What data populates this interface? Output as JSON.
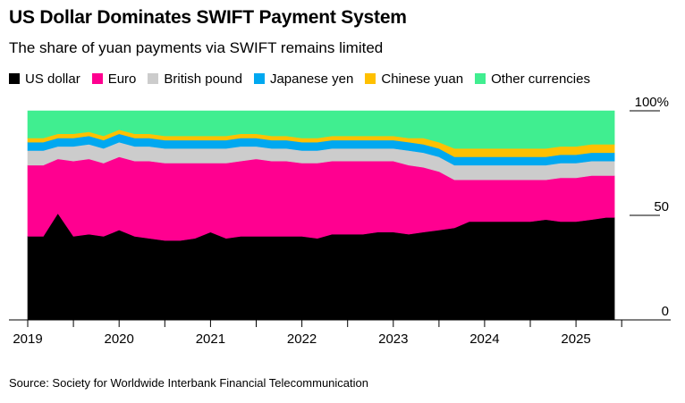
{
  "chart_data": {
    "type": "area",
    "stacked": true,
    "title": "US Dollar Dominates SWIFT Payment System",
    "subtitle": "The share of yuan payments via SWIFT remains limited",
    "source": "Source: Society for Worldwide Interbank Financial Telecommunication",
    "ylim": [
      0,
      100
    ],
    "y_ticks": [
      {
        "value": 100,
        "label": "100%"
      },
      {
        "value": 50,
        "label": "50"
      },
      {
        "value": 0,
        "label": "0"
      }
    ],
    "x_ticks": [
      {
        "value": 2019.0,
        "label": "2019"
      },
      {
        "value": 2019.5,
        "label": ""
      },
      {
        "value": 2020.0,
        "label": "2020"
      },
      {
        "value": 2020.5,
        "label": ""
      },
      {
        "value": 2021.0,
        "label": "2021"
      },
      {
        "value": 2021.5,
        "label": ""
      },
      {
        "value": 2022.0,
        "label": "2022"
      },
      {
        "value": 2022.5,
        "label": ""
      },
      {
        "value": 2023.0,
        "label": "2023"
      },
      {
        "value": 2023.5,
        "label": ""
      },
      {
        "value": 2024.0,
        "label": "2024"
      },
      {
        "value": 2024.5,
        "label": ""
      },
      {
        "value": 2025.0,
        "label": "2025"
      },
      {
        "value": 2025.5,
        "label": ""
      }
    ],
    "xlim": [
      2019.0,
      2025.85
    ],
    "x": [
      2019.0,
      2019.17,
      2019.33,
      2019.5,
      2019.67,
      2019.83,
      2020.0,
      2020.17,
      2020.33,
      2020.5,
      2020.67,
      2020.83,
      2021.0,
      2021.17,
      2021.33,
      2021.5,
      2021.67,
      2021.83,
      2022.0,
      2022.17,
      2022.33,
      2022.5,
      2022.67,
      2022.83,
      2023.0,
      2023.17,
      2023.33,
      2023.5,
      2023.67,
      2023.83,
      2024.0,
      2024.17,
      2024.33,
      2024.5,
      2024.67,
      2024.83,
      2025.0,
      2025.17,
      2025.33,
      2025.42
    ],
    "series": [
      {
        "name": "US dollar",
        "color": "#000000",
        "values": [
          40,
          40,
          51,
          40,
          41,
          40,
          43,
          40,
          39,
          38,
          38,
          39,
          42,
          39,
          40,
          40,
          40,
          40,
          40,
          39,
          41,
          41,
          41,
          42,
          42,
          41,
          42,
          43,
          44,
          47,
          47,
          47,
          47,
          47,
          48,
          47,
          47,
          48,
          49,
          49
        ]
      },
      {
        "name": "Euro",
        "color": "#ff0090",
        "values": [
          34,
          34,
          26,
          36,
          36,
          35,
          35,
          36,
          37,
          37,
          37,
          36,
          33,
          36,
          36,
          37,
          36,
          36,
          35,
          36,
          35,
          35,
          35,
          34,
          34,
          33,
          31,
          28,
          23,
          20,
          20,
          20,
          20,
          20,
          19,
          21,
          21,
          21,
          20,
          20
        ]
      },
      {
        "name": "British pound",
        "color": "#cccccc",
        "values": [
          7,
          7,
          6,
          7,
          7,
          7,
          7,
          7,
          7,
          7,
          7,
          7,
          7,
          7,
          7,
          6,
          6,
          6,
          6,
          6,
          6,
          6,
          6,
          6,
          6,
          7,
          7,
          7,
          7,
          7,
          7,
          7,
          7,
          7,
          7,
          7,
          7,
          7,
          7,
          7
        ]
      },
      {
        "name": "Japanese yen",
        "color": "#00a8f0",
        "values": [
          4,
          4,
          4,
          4,
          4,
          4,
          4,
          4,
          4,
          4,
          4,
          4,
          4,
          4,
          4,
          4,
          4,
          4,
          4,
          4,
          4,
          4,
          4,
          4,
          4,
          4,
          4,
          4,
          4,
          4,
          4,
          4,
          4,
          4,
          4,
          4,
          4,
          4,
          4,
          4
        ]
      },
      {
        "name": "Chinese yuan",
        "color": "#ffc000",
        "values": [
          2,
          2,
          2,
          2,
          2,
          2,
          2,
          2,
          2,
          2,
          2,
          2,
          2,
          2,
          2,
          2,
          2,
          2,
          2,
          2,
          2,
          2,
          2,
          2,
          2,
          2,
          3,
          3,
          4,
          4,
          4,
          4,
          4,
          4,
          4,
          4,
          4,
          4,
          4,
          4
        ]
      },
      {
        "name": "Other currencies",
        "color": "#40ee90",
        "values": [
          13,
          13,
          11,
          11,
          10,
          12,
          9,
          11,
          11,
          12,
          12,
          12,
          12,
          12,
          11,
          11,
          12,
          12,
          13,
          13,
          12,
          12,
          12,
          12,
          12,
          13,
          13,
          15,
          18,
          18,
          18,
          18,
          18,
          18,
          18,
          17,
          17,
          16,
          16,
          16
        ]
      }
    ]
  }
}
